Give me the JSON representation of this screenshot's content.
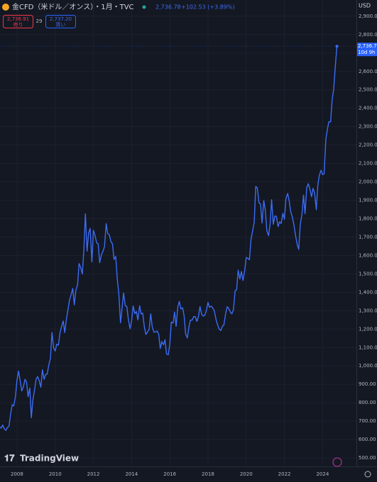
{
  "header": {
    "title": "金CFD（米ドル／オンス）・1月・TVC",
    "price": "2,736.78",
    "change": "+102.53 (+3.89%)",
    "sell_price": "2,736.91",
    "sell_label": "売り",
    "spread": "29",
    "buy_price": "2,737.20",
    "buy_label": "買い",
    "currency": "USD",
    "brand": "TradingView"
  },
  "chart_data": {
    "type": "line",
    "color": "#3b6cf3",
    "last_label": "2,736.78",
    "countdown": "10d 9h",
    "xlim": [
      2007.11,
      2025.77
    ],
    "ylim": [
      454,
      2988
    ],
    "xticks": [
      2008,
      2010,
      2012,
      2014,
      2016,
      2018,
      2020,
      2022,
      2024
    ],
    "yticks": [
      {
        "value": 500,
        "label": "500.00"
      },
      {
        "value": 600,
        "label": "600.00"
      },
      {
        "value": 700,
        "label": "700.00"
      },
      {
        "value": 800,
        "label": "800.00"
      },
      {
        "value": 900,
        "label": "900.00"
      },
      {
        "value": 1000,
        "label": "1,000.00"
      },
      {
        "value": 1100,
        "label": "1,100.00"
      },
      {
        "value": 1200,
        "label": "1,200.00"
      },
      {
        "value": 1300,
        "label": "1,300.00"
      },
      {
        "value": 1400,
        "label": "1,400.00"
      },
      {
        "value": 1500,
        "label": "1,500.00"
      },
      {
        "value": 1600,
        "label": "1,600.00"
      },
      {
        "value": 1700,
        "label": "1,700.00"
      },
      {
        "value": 1800,
        "label": "1,800.00"
      },
      {
        "value": 1900,
        "label": "1,900.00"
      },
      {
        "value": 2000,
        "label": "2,000.00"
      },
      {
        "value": 2100,
        "label": "2,100.00"
      },
      {
        "value": 2200,
        "label": "2,200.00"
      },
      {
        "value": 2300,
        "label": "2,300.00"
      },
      {
        "value": 2400,
        "label": "2,400.00"
      },
      {
        "value": 2500,
        "label": "2,500.00"
      },
      {
        "value": 2600,
        "label": "2,600.00"
      },
      {
        "value": 2700,
        "label": "2,700.00"
      },
      {
        "value": 2800,
        "label": "2,800.00"
      },
      {
        "value": 2900,
        "label": "2,900.00"
      }
    ],
    "x": [
      2007.08,
      2007.17,
      2007.25,
      2007.33,
      2007.42,
      2007.5,
      2007.58,
      2007.67,
      2007.75,
      2007.83,
      2007.92,
      2008,
      2008.08,
      2008.17,
      2008.25,
      2008.33,
      2008.42,
      2008.5,
      2008.58,
      2008.67,
      2008.75,
      2008.83,
      2008.92,
      2009,
      2009.08,
      2009.17,
      2009.25,
      2009.33,
      2009.42,
      2009.5,
      2009.58,
      2009.67,
      2009.75,
      2009.83,
      2009.92,
      2010,
      2010.08,
      2010.17,
      2010.25,
      2010.33,
      2010.42,
      2010.5,
      2010.58,
      2010.67,
      2010.75,
      2010.83,
      2010.92,
      2011,
      2011.08,
      2011.17,
      2011.25,
      2011.33,
      2011.42,
      2011.5,
      2011.58,
      2011.67,
      2011.75,
      2011.83,
      2011.92,
      2012,
      2012.08,
      2012.17,
      2012.25,
      2012.33,
      2012.42,
      2012.5,
      2012.58,
      2012.67,
      2012.75,
      2012.83,
      2012.92,
      2013,
      2013.08,
      2013.17,
      2013.25,
      2013.33,
      2013.42,
      2013.5,
      2013.58,
      2013.67,
      2013.75,
      2013.83,
      2013.92,
      2014,
      2014.08,
      2014.17,
      2014.25,
      2014.33,
      2014.42,
      2014.5,
      2014.58,
      2014.67,
      2014.75,
      2014.83,
      2014.92,
      2015,
      2015.08,
      2015.17,
      2015.25,
      2015.33,
      2015.42,
      2015.5,
      2015.58,
      2015.67,
      2015.75,
      2015.83,
      2015.92,
      2016,
      2016.08,
      2016.17,
      2016.25,
      2016.33,
      2016.42,
      2016.5,
      2016.58,
      2016.67,
      2016.75,
      2016.83,
      2016.92,
      2017,
      2017.08,
      2017.17,
      2017.25,
      2017.33,
      2017.42,
      2017.5,
      2017.58,
      2017.67,
      2017.75,
      2017.83,
      2017.92,
      2018,
      2018.08,
      2018.17,
      2018.25,
      2018.33,
      2018.42,
      2018.5,
      2018.58,
      2018.67,
      2018.75,
      2018.83,
      2018.92,
      2019,
      2019.08,
      2019.17,
      2019.25,
      2019.33,
      2019.42,
      2019.5,
      2019.58,
      2019.67,
      2019.75,
      2019.83,
      2019.92,
      2020,
      2020.08,
      2020.17,
      2020.25,
      2020.33,
      2020.42,
      2020.5,
      2020.58,
      2020.67,
      2020.75,
      2020.83,
      2020.92,
      2021,
      2021.08,
      2021.17,
      2021.25,
      2021.33,
      2021.42,
      2021.5,
      2021.58,
      2021.67,
      2021.75,
      2021.83,
      2021.92,
      2022,
      2022.08,
      2022.17,
      2022.25,
      2022.33,
      2022.42,
      2022.5,
      2022.58,
      2022.67,
      2022.75,
      2022.83,
      2022.92,
      2023,
      2023.08,
      2023.17,
      2023.25,
      2023.33,
      2023.42,
      2023.5,
      2023.58,
      2023.67,
      2023.75,
      2023.83,
      2023.92,
      2024,
      2024.08,
      2024.17,
      2024.25,
      2024.33,
      2024.42,
      2024.5,
      2024.58,
      2024.67,
      2024.75
    ],
    "values": [
      669,
      662,
      679,
      659,
      650,
      665,
      672,
      743,
      789,
      783,
      834,
      923,
      972,
      916,
      864,
      885,
      927,
      913,
      833,
      880,
      718,
      814,
      870,
      928,
      942,
      917,
      884,
      979,
      927,
      954,
      955,
      1008,
      1040,
      1182,
      1096,
      1081,
      1118,
      1113,
      1180,
      1213,
      1244,
      1181,
      1248,
      1307,
      1357,
      1386,
      1421,
      1332,
      1410,
      1439,
      1556,
      1536,
      1500,
      1628,
      1826,
      1624,
      1722,
      1747,
      1565,
      1737,
      1710,
      1669,
      1663,
      1561,
      1604,
      1622,
      1648,
      1773,
      1719,
      1713,
      1675,
      1663,
      1579,
      1595,
      1472,
      1393,
      1234,
      1313,
      1396,
      1327,
      1323,
      1253,
      1202,
      1244,
      1326,
      1284,
      1296,
      1250,
      1327,
      1282,
      1287,
      1211,
      1171,
      1183,
      1199,
      1283,
      1213,
      1183,
      1184,
      1190,
      1172,
      1095,
      1132,
      1115,
      1142,
      1064,
      1061,
      1118,
      1238,
      1233,
      1293,
      1215,
      1322,
      1350,
      1309,
      1316,
      1272,
      1173,
      1152,
      1211,
      1249,
      1249,
      1268,
      1268,
      1242,
      1269,
      1322,
      1280,
      1271,
      1275,
      1303,
      1345,
      1318,
      1325,
      1315,
      1299,
      1253,
      1224,
      1201,
      1192,
      1215,
      1222,
      1282,
      1321,
      1313,
      1292,
      1283,
      1305,
      1409,
      1414,
      1520,
      1472,
      1513,
      1464,
      1517,
      1589,
      1585,
      1577,
      1686,
      1730,
      1781,
      1975,
      1967,
      1886,
      1879,
      1776,
      1898,
      1847,
      1734,
      1708,
      1769,
      1903,
      1770,
      1814,
      1813,
      1757,
      1783,
      1774,
      1829,
      1797,
      1909,
      1937,
      1897,
      1837,
      1807,
      1765,
      1711,
      1660,
      1633,
      1768,
      1824,
      1928,
      1827,
      1969,
      1990,
      1963,
      1919,
      1965,
      1940,
      1849,
      1983,
      2036,
      2063,
      2039,
      2044,
      2230,
      2286,
      2327,
      2326,
      2447,
      2503,
      2634,
      2736.78
    ]
  }
}
